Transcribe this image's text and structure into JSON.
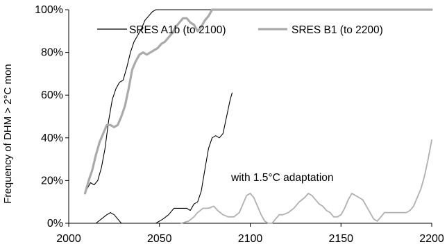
{
  "chart_data": {
    "type": "line",
    "title": "",
    "xlabel": "",
    "ylabel": "Frequency of DHM > 2°C mon",
    "xlim": [
      2000,
      2200
    ],
    "ylim": [
      0,
      100
    ],
    "x_ticks": [
      2000,
      2050,
      2100,
      2150,
      2200
    ],
    "y_ticks": [
      0,
      20,
      40,
      60,
      80,
      100
    ],
    "x_tick_labels": [
      "2000",
      "2050",
      "2100",
      "2150",
      "2200"
    ],
    "y_tick_labels": [
      "0%",
      "20%",
      "40%",
      "60%",
      "80%",
      "100%"
    ],
    "grid": false,
    "legend_position": "top",
    "annotation": "with 1.5°C adaptation",
    "series": [
      {
        "name": "SRES A1b (to 2100)",
        "color": "#000000",
        "style": "thin",
        "points": [
          [
            2010,
            16
          ],
          [
            2012,
            19
          ],
          [
            2014,
            18
          ],
          [
            2016,
            20
          ],
          [
            2018,
            26
          ],
          [
            2020,
            35
          ],
          [
            2022,
            48
          ],
          [
            2024,
            58
          ],
          [
            2026,
            63
          ],
          [
            2028,
            66
          ],
          [
            2030,
            67
          ],
          [
            2032,
            73
          ],
          [
            2034,
            80
          ],
          [
            2036,
            85
          ],
          [
            2038,
            88
          ],
          [
            2040,
            91
          ],
          [
            2042,
            95
          ],
          [
            2044,
            97
          ],
          [
            2046,
            99
          ],
          [
            2048,
            100
          ],
          [
            2090,
            100
          ]
        ]
      },
      {
        "name": "SRES B1 (to 2200)",
        "color": "#aaaaaa",
        "style": "thick",
        "points": [
          [
            2009,
            14
          ],
          [
            2011,
            20
          ],
          [
            2013,
            25
          ],
          [
            2015,
            32
          ],
          [
            2017,
            38
          ],
          [
            2019,
            42
          ],
          [
            2021,
            46
          ],
          [
            2023,
            46
          ],
          [
            2025,
            45
          ],
          [
            2027,
            46
          ],
          [
            2029,
            50
          ],
          [
            2031,
            55
          ],
          [
            2033,
            63
          ],
          [
            2035,
            72
          ],
          [
            2037,
            76
          ],
          [
            2039,
            79
          ],
          [
            2041,
            80
          ],
          [
            2043,
            79
          ],
          [
            2045,
            80
          ],
          [
            2047,
            81
          ],
          [
            2049,
            82
          ],
          [
            2051,
            84
          ],
          [
            2053,
            85
          ],
          [
            2055,
            87
          ],
          [
            2057,
            89
          ],
          [
            2059,
            92
          ],
          [
            2061,
            94
          ],
          [
            2063,
            96
          ],
          [
            2065,
            96
          ],
          [
            2067,
            94
          ],
          [
            2069,
            93
          ],
          [
            2071,
            90
          ],
          [
            2073,
            92
          ],
          [
            2075,
            95
          ],
          [
            2077,
            97
          ],
          [
            2079,
            100
          ],
          [
            2200,
            100
          ]
        ]
      },
      {
        "name": "",
        "color": "#000000",
        "style": "thin",
        "points": [
          [
            2010,
            0
          ],
          [
            2015,
            0
          ],
          [
            2018,
            2
          ],
          [
            2021,
            4
          ],
          [
            2023,
            5
          ],
          [
            2025,
            4
          ],
          [
            2027,
            2
          ],
          [
            2029,
            0
          ],
          [
            2048,
            0
          ],
          [
            2052,
            2
          ],
          [
            2055,
            4
          ],
          [
            2058,
            7
          ],
          [
            2062,
            7
          ],
          [
            2065,
            7
          ],
          [
            2067,
            6
          ],
          [
            2069,
            9
          ],
          [
            2071,
            10
          ],
          [
            2073,
            15
          ],
          [
            2075,
            25
          ],
          [
            2077,
            35
          ],
          [
            2079,
            40
          ],
          [
            2081,
            41
          ],
          [
            2083,
            40
          ],
          [
            2085,
            42
          ],
          [
            2087,
            50
          ],
          [
            2089,
            58
          ],
          [
            2090,
            61
          ]
        ]
      },
      {
        "name": "",
        "color": "#b0b0b0",
        "style": "thin",
        "points": [
          [
            2062,
            0
          ],
          [
            2066,
            1
          ],
          [
            2069,
            3
          ],
          [
            2071,
            5
          ],
          [
            2074,
            7
          ],
          [
            2077,
            7
          ],
          [
            2080,
            8
          ],
          [
            2082,
            6
          ],
          [
            2085,
            4
          ],
          [
            2088,
            3
          ],
          [
            2091,
            3
          ],
          [
            2094,
            5
          ],
          [
            2096,
            9
          ],
          [
            2098,
            13
          ],
          [
            2100,
            14
          ],
          [
            2102,
            12
          ],
          [
            2104,
            8
          ],
          [
            2106,
            4
          ],
          [
            2108,
            1
          ],
          [
            2110,
            0
          ],
          [
            2112,
            0
          ],
          [
            2114,
            2
          ],
          [
            2116,
            4
          ],
          [
            2118,
            4
          ],
          [
            2121,
            5
          ],
          [
            2124,
            7
          ],
          [
            2127,
            10
          ],
          [
            2130,
            12
          ],
          [
            2132,
            14
          ],
          [
            2134,
            13
          ],
          [
            2136,
            11
          ],
          [
            2138,
            9
          ],
          [
            2140,
            8
          ],
          [
            2142,
            6
          ],
          [
            2144,
            5
          ],
          [
            2146,
            3
          ],
          [
            2148,
            3
          ],
          [
            2150,
            4
          ],
          [
            2152,
            7
          ],
          [
            2154,
            11
          ],
          [
            2156,
            14
          ],
          [
            2158,
            13
          ],
          [
            2160,
            12
          ],
          [
            2162,
            11
          ],
          [
            2164,
            8
          ],
          [
            2166,
            5
          ],
          [
            2168,
            2
          ],
          [
            2170,
            1
          ],
          [
            2172,
            3
          ],
          [
            2174,
            5
          ],
          [
            2177,
            5
          ],
          [
            2180,
            5
          ],
          [
            2183,
            5
          ],
          [
            2186,
            5
          ],
          [
            2188,
            6
          ],
          [
            2190,
            8
          ],
          [
            2192,
            12
          ],
          [
            2194,
            16
          ],
          [
            2196,
            22
          ],
          [
            2198,
            30
          ],
          [
            2200,
            39
          ]
        ]
      }
    ]
  }
}
